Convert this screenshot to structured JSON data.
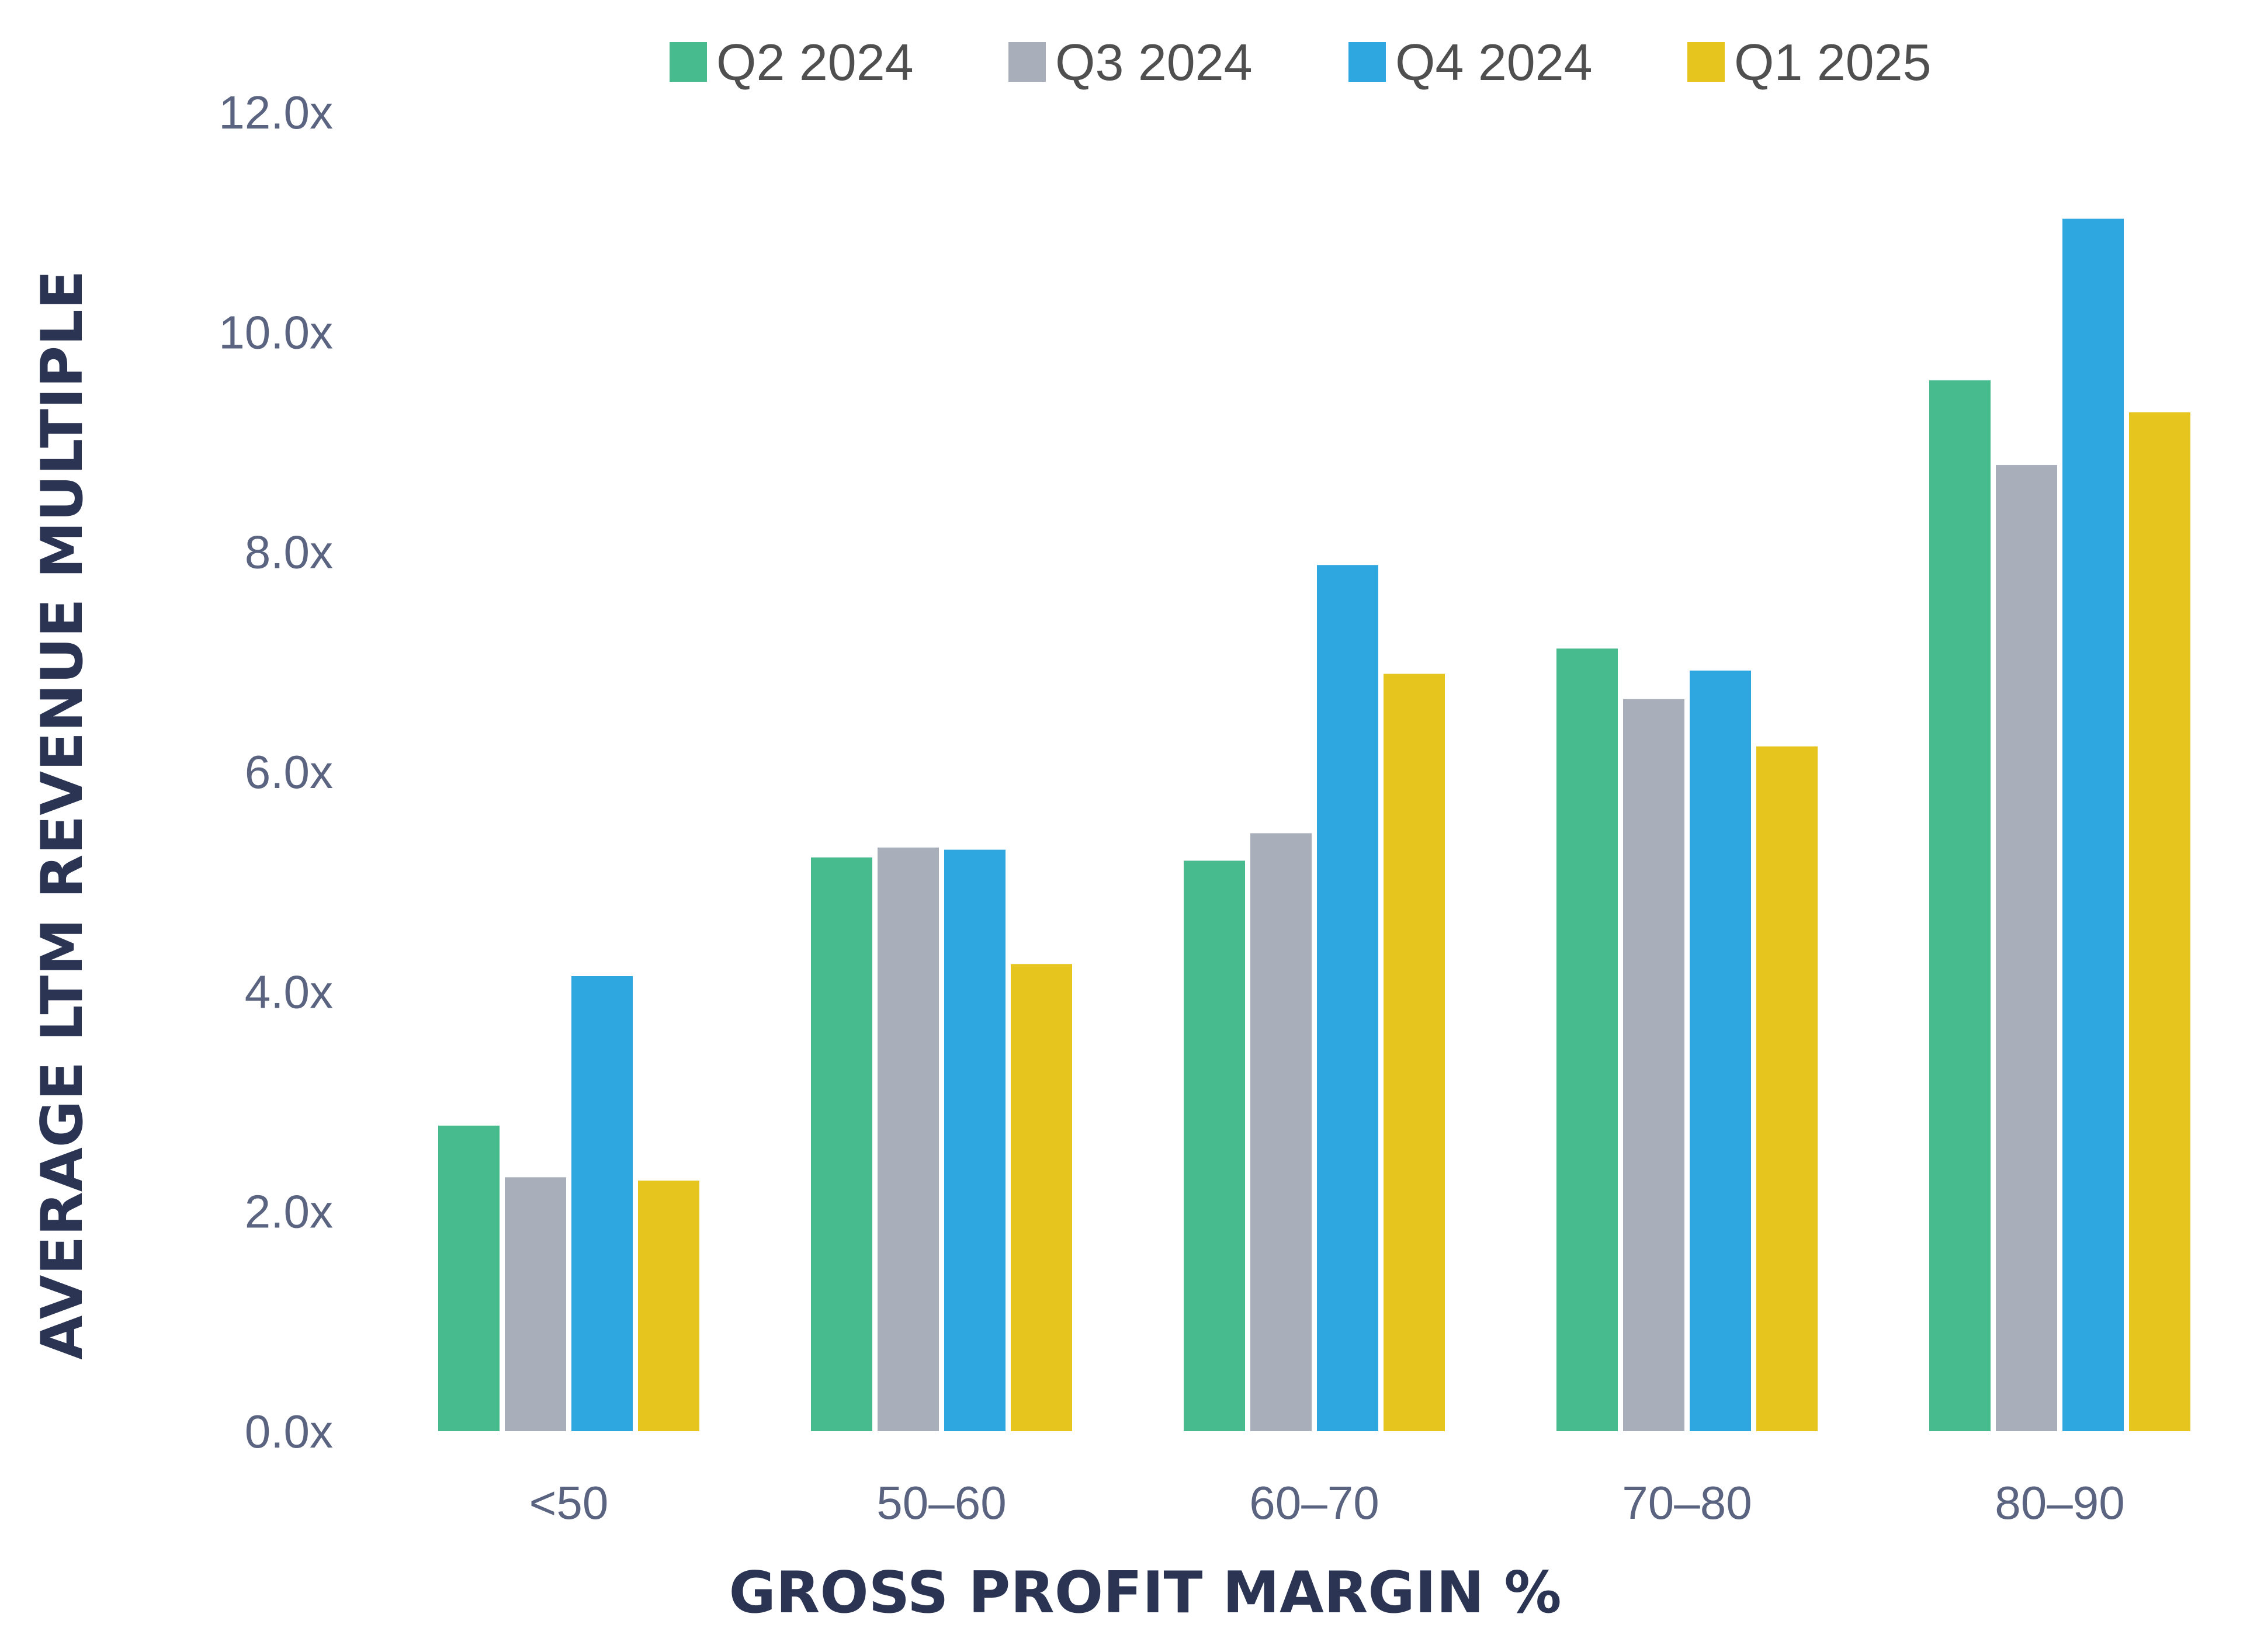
{
  "chart_data": {
    "type": "bar",
    "title": "",
    "xlabel": "GROSS PROFIT MARGIN %",
    "ylabel": "AVERAGE LTM REVENUE MULTIPLE",
    "categories": [
      "<50",
      "50–60",
      "60–70",
      "70–80",
      "80–90"
    ],
    "series": [
      {
        "name": "Q2 2024",
        "color": "#47BA8E",
        "values": [
          2.78,
          5.22,
          5.19,
          7.12,
          9.56
        ]
      },
      {
        "name": "Q3 2024",
        "color": "#A9AFBA",
        "values": [
          2.31,
          5.31,
          5.44,
          6.66,
          8.79
        ]
      },
      {
        "name": "Q4 2024",
        "color": "#2EA7E0",
        "values": [
          4.14,
          5.29,
          7.88,
          6.92,
          11.03
        ]
      },
      {
        "name": "Q1 2025",
        "color": "#E5C51E",
        "values": [
          2.28,
          4.25,
          6.89,
          6.23,
          9.27
        ]
      }
    ],
    "ylim": [
      0,
      12
    ],
    "yticks": [
      0,
      2,
      4,
      6,
      8,
      10,
      12
    ],
    "ytick_labels": [
      "0.0x",
      "2.0x",
      "4.0x",
      "6.0x",
      "8.0x",
      "10.0x",
      "12.0x"
    ],
    "axis_color": "#47BA8E",
    "grid": false,
    "legend_position": "top"
  }
}
